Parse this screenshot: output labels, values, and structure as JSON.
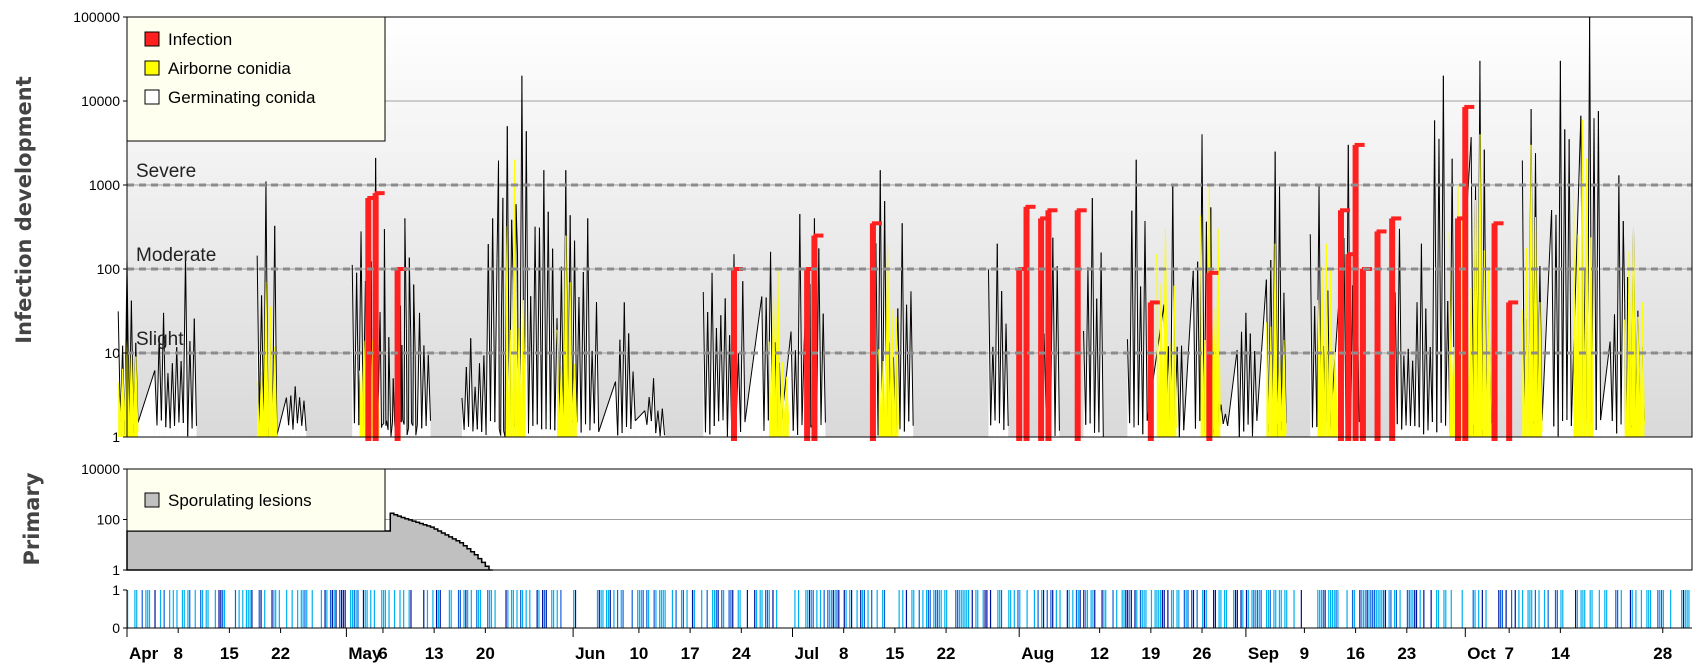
{
  "chart_data": [
    {
      "type": "area",
      "panel": "infection",
      "ylabel": "Infection development",
      "yscale": "log",
      "ylim": [
        1,
        100000
      ],
      "yticks": [
        "1",
        "10",
        "100",
        "1000",
        "10000",
        "100000"
      ],
      "thresholds": [
        {
          "label": "Severe",
          "value": 1000
        },
        {
          "label": "Moderate",
          "value": 100
        },
        {
          "label": "Slight",
          "value": 10
        }
      ],
      "legend": {
        "position": "top-left",
        "entries": [
          "Infection",
          "Airborne conidia",
          "Germinating conida"
        ]
      },
      "colors": {
        "Infection": "#ff2020",
        "Airborne conidia": "#ffff00",
        "Germinating conida": "#ffffff",
        "outline": "#000000"
      },
      "series": [
        {
          "name": "Germinating conida",
          "peaks": [
            {
              "date": "Apr 1",
              "value": 130
            },
            {
              "date": "Apr 6",
              "value": 30
            },
            {
              "date": "Apr 9",
              "value": 150
            },
            {
              "date": "Apr 20",
              "value": 1100
            },
            {
              "date": "Apr 24",
              "value": 4
            },
            {
              "date": "May 3",
              "value": 280
            },
            {
              "date": "May 5",
              "value": 2100
            },
            {
              "date": "May 7",
              "value": 2
            },
            {
              "date": "May 8",
              "value": 60
            },
            {
              "date": "May 9",
              "value": 400
            },
            {
              "date": "May 11",
              "value": 30
            },
            {
              "date": "May 18",
              "value": 15
            },
            {
              "date": "May 21",
              "value": 400
            },
            {
              "date": "May 23",
              "value": 5000
            },
            {
              "date": "May 25",
              "value": 20000
            },
            {
              "date": "May 28",
              "value": 1500
            },
            {
              "date": "May 31",
              "value": 1500
            },
            {
              "date": "Jun 3",
              "value": 400
            },
            {
              "date": "Jun 8",
              "value": 40
            },
            {
              "date": "Jun 12",
              "value": 5
            },
            {
              "date": "Jun 20",
              "value": 90
            },
            {
              "date": "Jun 23",
              "value": 150
            },
            {
              "date": "Jun 28",
              "value": 160
            },
            {
              "date": "Jul 2",
              "value": 450
            },
            {
              "date": "Jul 4",
              "value": 400
            },
            {
              "date": "Jul 13",
              "value": 1500
            },
            {
              "date": "Jul 16",
              "value": 350
            },
            {
              "date": "Jul 29",
              "value": 200
            },
            {
              "date": "Aug 5",
              "value": 500
            },
            {
              "date": "Aug 11",
              "value": 700
            },
            {
              "date": "Aug 17",
              "value": 2000
            },
            {
              "date": "Aug 22",
              "value": 1000
            },
            {
              "date": "Aug 26",
              "value": 4000
            },
            {
              "date": "Aug 28",
              "value": 4
            },
            {
              "date": "Sep 1",
              "value": 30
            },
            {
              "date": "Sep 5",
              "value": 2500
            },
            {
              "date": "Sep 11",
              "value": 1000
            },
            {
              "date": "Sep 15",
              "value": 3000
            },
            {
              "date": "Sep 22",
              "value": 300
            },
            {
              "date": "Sep 25",
              "value": 200
            },
            {
              "date": "Sep 28",
              "value": 20000
            },
            {
              "date": "Oct 3",
              "value": 30000
            },
            {
              "date": "Oct 10",
              "value": 8000
            },
            {
              "date": "Oct 14",
              "value": 30000
            },
            {
              "date": "Oct 18",
              "value": 100000
            },
            {
              "date": "Oct 22",
              "value": 1300
            },
            {
              "date": "Oct 24",
              "value": 300
            }
          ]
        },
        {
          "name": "Airborne conidia",
          "peaks": [
            {
              "date": "Apr 1",
              "value": 15
            },
            {
              "date": "Apr 20",
              "value": 70
            },
            {
              "date": "May 4",
              "value": 25
            },
            {
              "date": "May 24",
              "value": 2000
            },
            {
              "date": "May 31",
              "value": 250
            },
            {
              "date": "Jun 29",
              "value": 100
            },
            {
              "date": "Jul 14",
              "value": 200
            },
            {
              "date": "Aug 21",
              "value": 300
            },
            {
              "date": "Aug 27",
              "value": 1000
            },
            {
              "date": "Sep 5",
              "value": 200
            },
            {
              "date": "Sep 12",
              "value": 200
            },
            {
              "date": "Sep 30",
              "value": 1000
            },
            {
              "date": "Oct 3",
              "value": 4000
            },
            {
              "date": "Oct 10",
              "value": 3000
            },
            {
              "date": "Oct 17",
              "value": 6000
            },
            {
              "date": "Oct 24",
              "value": 300
            }
          ]
        },
        {
          "name": "Infection",
          "peaks": [
            {
              "date": "May 4",
              "value": 700
            },
            {
              "date": "May 5",
              "value": 800
            },
            {
              "date": "May 8",
              "value": 100
            },
            {
              "date": "Jun 23",
              "value": 100
            },
            {
              "date": "Jul 3",
              "value": 100
            },
            {
              "date": "Jul 4",
              "value": 250
            },
            {
              "date": "Jul 12",
              "value": 350
            },
            {
              "date": "Aug 1",
              "value": 100
            },
            {
              "date": "Aug 2",
              "value": 550
            },
            {
              "date": "Aug 4",
              "value": 400
            },
            {
              "date": "Aug 5",
              "value": 500
            },
            {
              "date": "Aug 9",
              "value": 500
            },
            {
              "date": "Aug 19",
              "value": 40
            },
            {
              "date": "Aug 27",
              "value": 90
            },
            {
              "date": "Sep 14",
              "value": 500
            },
            {
              "date": "Sep 15",
              "value": 150
            },
            {
              "date": "Sep 16",
              "value": 3000
            },
            {
              "date": "Sep 17",
              "value": 100
            },
            {
              "date": "Sep 19",
              "value": 280
            },
            {
              "date": "Sep 21",
              "value": 400
            },
            {
              "date": "Sep 30",
              "value": 400
            },
            {
              "date": "Oct 1",
              "value": 8500
            },
            {
              "date": "Oct 5",
              "value": 350
            },
            {
              "date": "Oct 7",
              "value": 40
            }
          ]
        }
      ]
    },
    {
      "type": "area",
      "panel": "primary",
      "ylabel": "Primary",
      "yscale": "log",
      "ylim": [
        1,
        10000
      ],
      "yticks": [
        "1",
        "100",
        "10000"
      ],
      "legend": {
        "position": "top-left",
        "entries": [
          "Sporulating lesions"
        ]
      },
      "colors": {
        "Sporulating lesions": "#c0c0c0"
      },
      "series": [
        {
          "name": "Sporulating lesions",
          "x": [
            "Apr 1",
            "May 7",
            "May 9",
            "May 13",
            "May 17",
            "May 19",
            "May 21"
          ],
          "values": [
            35,
            200,
            120,
            50,
            12,
            4,
            1
          ]
        }
      ]
    },
    {
      "type": "heatmap",
      "panel": "wetness",
      "ylim": [
        0,
        1
      ],
      "yticks": [
        "0",
        "1"
      ],
      "colors": {
        "light": "#00b0f0",
        "mid": "#1060e0",
        "dark": "#0010a0"
      },
      "note": "daily stripes, white = no wetness"
    }
  ],
  "xaxis": {
    "ticks": [
      "Apr",
      "8",
      "15",
      "22",
      "May",
      "6",
      "13",
      "20",
      "Jun",
      "10",
      "17",
      "24",
      "Jul",
      "8",
      "15",
      "22",
      "Aug",
      "12",
      "19",
      "26",
      "Sep",
      "9",
      "16",
      "23",
      "Oct",
      "7",
      "14",
      "28"
    ],
    "months": [
      "Apr",
      "May",
      "Jun",
      "Jul",
      "Aug",
      "Sep",
      "Oct"
    ]
  }
}
